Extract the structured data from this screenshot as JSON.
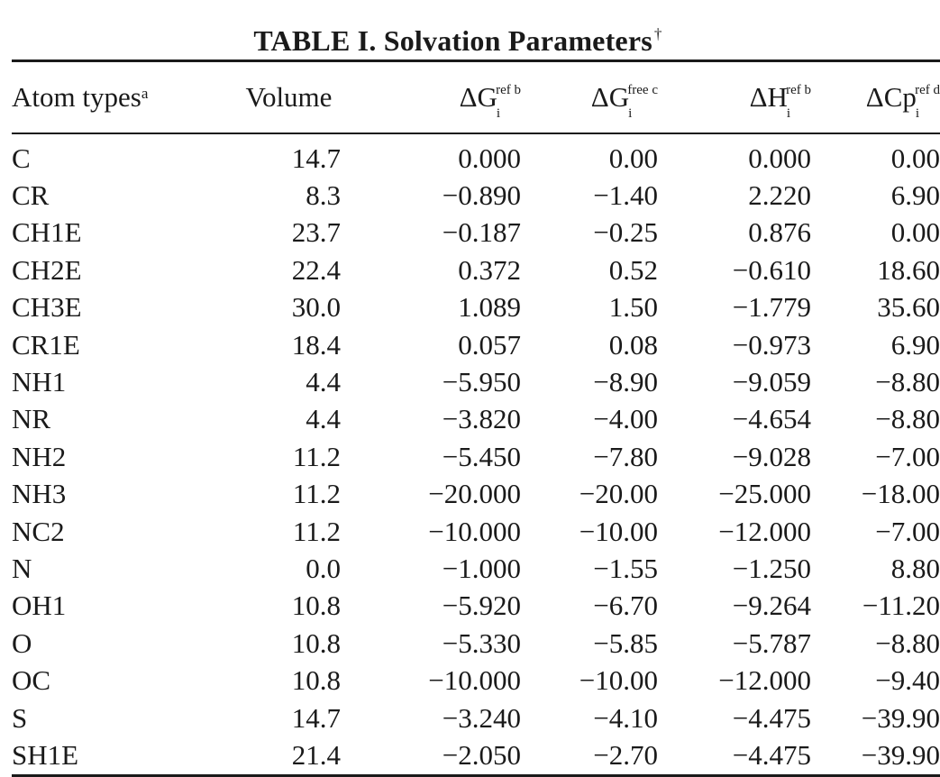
{
  "table": {
    "title": "TABLE I. Solvation Parameters",
    "title_mark": "†",
    "headers": {
      "atom": {
        "label": "Atom types",
        "sup": "a"
      },
      "volume": {
        "label": "Volume"
      },
      "dg_ref": {
        "symbol": "ΔG",
        "sub": "i",
        "sup": "ref b"
      },
      "dg_free": {
        "symbol": "ΔG",
        "sub": "i",
        "sup": "free c"
      },
      "dh_ref": {
        "symbol": "ΔH",
        "sub": "i",
        "sup": "ref b"
      },
      "dcp_ref": {
        "symbol": "ΔCp",
        "sub": "i",
        "sup": "ref d"
      }
    },
    "rows": [
      {
        "atom": "C",
        "volume": "14.7",
        "dg_ref": "0.000",
        "dg_free": "0.00",
        "dh_ref": "0.000",
        "dcp_ref": "0.00"
      },
      {
        "atom": "CR",
        "volume": "8.3",
        "dg_ref": "−0.890",
        "dg_free": "−1.40",
        "dh_ref": "2.220",
        "dcp_ref": "6.90"
      },
      {
        "atom": "CH1E",
        "volume": "23.7",
        "dg_ref": "−0.187",
        "dg_free": "−0.25",
        "dh_ref": "0.876",
        "dcp_ref": "0.00"
      },
      {
        "atom": "CH2E",
        "volume": "22.4",
        "dg_ref": "0.372",
        "dg_free": "0.52",
        "dh_ref": "−0.610",
        "dcp_ref": "18.60"
      },
      {
        "atom": "CH3E",
        "volume": "30.0",
        "dg_ref": "1.089",
        "dg_free": "1.50",
        "dh_ref": "−1.779",
        "dcp_ref": "35.60"
      },
      {
        "atom": "CR1E",
        "volume": "18.4",
        "dg_ref": "0.057",
        "dg_free": "0.08",
        "dh_ref": "−0.973",
        "dcp_ref": "6.90"
      },
      {
        "atom": "NH1",
        "volume": "4.4",
        "dg_ref": "−5.950",
        "dg_free": "−8.90",
        "dh_ref": "−9.059",
        "dcp_ref": "−8.80"
      },
      {
        "atom": "NR",
        "volume": "4.4",
        "dg_ref": "−3.820",
        "dg_free": "−4.00",
        "dh_ref": "−4.654",
        "dcp_ref": "−8.80"
      },
      {
        "atom": "NH2",
        "volume": "11.2",
        "dg_ref": "−5.450",
        "dg_free": "−7.80",
        "dh_ref": "−9.028",
        "dcp_ref": "−7.00"
      },
      {
        "atom": "NH3",
        "volume": "11.2",
        "dg_ref": "−20.000",
        "dg_free": "−20.00",
        "dh_ref": "−25.000",
        "dcp_ref": "−18.00"
      },
      {
        "atom": "NC2",
        "volume": "11.2",
        "dg_ref": "−10.000",
        "dg_free": "−10.00",
        "dh_ref": "−12.000",
        "dcp_ref": "−7.00"
      },
      {
        "atom": "N",
        "volume": "0.0",
        "dg_ref": "−1.000",
        "dg_free": "−1.55",
        "dh_ref": "−1.250",
        "dcp_ref": "8.80"
      },
      {
        "atom": "OH1",
        "volume": "10.8",
        "dg_ref": "−5.920",
        "dg_free": "−6.70",
        "dh_ref": "−9.264",
        "dcp_ref": "−11.20"
      },
      {
        "atom": "O",
        "volume": "10.8",
        "dg_ref": "−5.330",
        "dg_free": "−5.85",
        "dh_ref": "−5.787",
        "dcp_ref": "−8.80"
      },
      {
        "atom": "OC",
        "volume": "10.8",
        "dg_ref": "−10.000",
        "dg_free": "−10.00",
        "dh_ref": "−12.000",
        "dcp_ref": "−9.40"
      },
      {
        "atom": "S",
        "volume": "14.7",
        "dg_ref": "−3.240",
        "dg_free": "−4.10",
        "dh_ref": "−4.475",
        "dcp_ref": "−39.90"
      },
      {
        "atom": "SH1E",
        "volume": "21.4",
        "dg_ref": "−2.050",
        "dg_free": "−2.70",
        "dh_ref": "−4.475",
        "dcp_ref": "−39.90"
      }
    ]
  }
}
